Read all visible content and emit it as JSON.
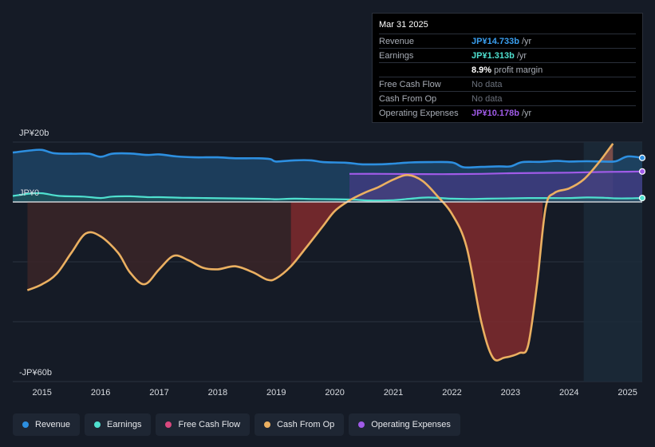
{
  "chart_data": {
    "type": "area",
    "title": "",
    "y_axis": {
      "top_label": "JP¥20b",
      "zero_label": "JP¥0",
      "bottom_label": "-JP¥60b",
      "ylim": [
        -60,
        20
      ]
    },
    "x_axis": {
      "ticks": [
        "2015",
        "2016",
        "2017",
        "2018",
        "2019",
        "2020",
        "2021",
        "2022",
        "2023",
        "2024",
        "2025"
      ],
      "xlim": [
        2014.5,
        2025.25
      ]
    },
    "highlight_region": [
      2024.25,
      2025.25
    ],
    "series": [
      {
        "name": "Revenue",
        "color": "#2d8fe0",
        "type": "area",
        "points": [
          [
            2014.5,
            16.5
          ],
          [
            2014.8,
            17.2
          ],
          [
            2015.0,
            17.4
          ],
          [
            2015.2,
            16.3
          ],
          [
            2015.5,
            16.1
          ],
          [
            2015.8,
            16.1
          ],
          [
            2016.0,
            15.1
          ],
          [
            2016.2,
            16.1
          ],
          [
            2016.5,
            16.2
          ],
          [
            2016.8,
            15.7
          ],
          [
            2017.0,
            15.9
          ],
          [
            2017.3,
            15.2
          ],
          [
            2017.6,
            14.9
          ],
          [
            2018.0,
            14.9
          ],
          [
            2018.3,
            14.6
          ],
          [
            2018.7,
            14.6
          ],
          [
            2018.9,
            14.3
          ],
          [
            2019.0,
            13.5
          ],
          [
            2019.3,
            13.9
          ],
          [
            2019.6,
            13.9
          ],
          [
            2019.8,
            13.3
          ],
          [
            2020.2,
            13.1
          ],
          [
            2020.45,
            12.6
          ],
          [
            2020.8,
            12.6
          ],
          [
            2021.0,
            12.8
          ],
          [
            2021.3,
            13.2
          ],
          [
            2021.6,
            13.3
          ],
          [
            2022.0,
            13.2
          ],
          [
            2022.2,
            11.6
          ],
          [
            2022.5,
            11.7
          ],
          [
            2022.8,
            11.9
          ],
          [
            2023.0,
            11.9
          ],
          [
            2023.2,
            13.3
          ],
          [
            2023.5,
            13.4
          ],
          [
            2023.8,
            13.7
          ],
          [
            2024.0,
            13.5
          ],
          [
            2024.3,
            13.6
          ],
          [
            2024.6,
            13.5
          ],
          [
            2024.8,
            13.6
          ],
          [
            2025.0,
            15.2
          ],
          [
            2025.25,
            14.733
          ]
        ]
      },
      {
        "name": "Earnings",
        "color": "#4fe0cf",
        "type": "area",
        "points": [
          [
            2014.5,
            2.0
          ],
          [
            2014.8,
            2.8
          ],
          [
            2015.0,
            2.9
          ],
          [
            2015.3,
            2.0
          ],
          [
            2015.7,
            1.8
          ],
          [
            2016.0,
            1.3
          ],
          [
            2016.2,
            1.8
          ],
          [
            2016.5,
            1.9
          ],
          [
            2016.8,
            1.6
          ],
          [
            2017.0,
            1.6
          ],
          [
            2017.4,
            1.4
          ],
          [
            2017.8,
            1.3
          ],
          [
            2018.2,
            1.2
          ],
          [
            2018.6,
            1.1
          ],
          [
            2018.9,
            1.0
          ],
          [
            2019.0,
            0.9
          ],
          [
            2019.3,
            1.1
          ],
          [
            2019.6,
            1.0
          ],
          [
            2020.0,
            0.9
          ],
          [
            2020.3,
            0.8
          ],
          [
            2020.6,
            0.5
          ],
          [
            2021.0,
            0.6
          ],
          [
            2021.3,
            1.1
          ],
          [
            2021.6,
            1.5
          ],
          [
            2022.0,
            1.1
          ],
          [
            2022.3,
            1.0
          ],
          [
            2022.6,
            1.1
          ],
          [
            2023.0,
            1.2
          ],
          [
            2023.3,
            1.3
          ],
          [
            2023.6,
            1.3
          ],
          [
            2024.0,
            1.3
          ],
          [
            2024.3,
            1.5
          ],
          [
            2024.6,
            1.4
          ],
          [
            2024.8,
            1.2
          ],
          [
            2025.0,
            1.2
          ],
          [
            2025.25,
            1.313
          ]
        ]
      },
      {
        "name": "Operating Expenses",
        "color": "#a05be8",
        "type": "area",
        "points": [
          [
            2020.25,
            9.4
          ],
          [
            2020.8,
            9.4
          ],
          [
            2021.5,
            9.3
          ],
          [
            2022.0,
            9.3
          ],
          [
            2022.5,
            9.4
          ],
          [
            2023.0,
            9.6
          ],
          [
            2023.5,
            9.7
          ],
          [
            2024.0,
            9.8
          ],
          [
            2024.5,
            10.0
          ],
          [
            2025.0,
            10.1
          ],
          [
            2025.25,
            10.178
          ]
        ]
      },
      {
        "name": "Cash From Op",
        "color": "#ebb061",
        "type": "area",
        "points": [
          [
            2014.75,
            -29.5
          ],
          [
            2015.0,
            -27.5
          ],
          [
            2015.25,
            -24.0
          ],
          [
            2015.5,
            -17.0
          ],
          [
            2015.75,
            -10.5
          ],
          [
            2016.0,
            -11.5
          ],
          [
            2016.3,
            -17.0
          ],
          [
            2016.5,
            -23.5
          ],
          [
            2016.75,
            -27.5
          ],
          [
            2017.0,
            -22.5
          ],
          [
            2017.25,
            -18.0
          ],
          [
            2017.5,
            -19.5
          ],
          [
            2017.75,
            -22.0
          ],
          [
            2018.0,
            -22.5
          ],
          [
            2018.3,
            -21.5
          ],
          [
            2018.6,
            -23.5
          ],
          [
            2018.85,
            -26.0
          ],
          [
            2019.0,
            -25.5
          ],
          [
            2019.25,
            -21.5
          ],
          [
            2019.5,
            -15.5
          ],
          [
            2019.8,
            -8.0
          ],
          [
            2020.0,
            -3.0
          ],
          [
            2020.25,
            0.5
          ],
          [
            2020.5,
            3.0
          ],
          [
            2020.75,
            5.0
          ],
          [
            2021.0,
            7.5
          ],
          [
            2021.25,
            9.0
          ],
          [
            2021.5,
            7.0
          ],
          [
            2021.75,
            2.0
          ],
          [
            2022.0,
            -4.0
          ],
          [
            2022.25,
            -15.0
          ],
          [
            2022.5,
            -40.0
          ],
          [
            2022.7,
            -52.0
          ],
          [
            2022.9,
            -52.0
          ],
          [
            2023.15,
            -50.5
          ],
          [
            2023.3,
            -48.0
          ],
          [
            2023.45,
            -28.0
          ],
          [
            2023.6,
            -2.0
          ],
          [
            2023.75,
            3.0
          ],
          [
            2024.0,
            4.5
          ],
          [
            2024.25,
            7.5
          ],
          [
            2024.5,
            13.0
          ],
          [
            2024.75,
            19.5
          ]
        ]
      }
    ],
    "negative_region_fill": [
      [
        2014.75,
        2019.25,
        "dark"
      ],
      [
        2019.25,
        2020.25,
        "red"
      ],
      [
        2021.7,
        2023.55,
        "red"
      ]
    ]
  },
  "tooltip": {
    "date": "Mar 31 2025",
    "rows": [
      {
        "label": "Revenue",
        "value": "JP¥14.733b",
        "unit": "/yr",
        "color": "#3a9ff0"
      },
      {
        "label": "Earnings",
        "value": "JP¥1.313b",
        "unit": "/yr",
        "color": "#4fe0cf"
      },
      {
        "label": "",
        "value": "8.9%",
        "unit": "profit margin",
        "color": "#ffffff"
      },
      {
        "label": "Free Cash Flow",
        "value": "No data",
        "unit": "",
        "color": ""
      },
      {
        "label": "Cash From Op",
        "value": "No data",
        "unit": "",
        "color": ""
      },
      {
        "label": "Operating Expenses",
        "value": "JP¥10.178b",
        "unit": "/yr",
        "color": "#a05be8"
      }
    ]
  },
  "legend": [
    {
      "label": "Revenue",
      "color": "#2d8fe0"
    },
    {
      "label": "Earnings",
      "color": "#4fe0cf"
    },
    {
      "label": "Free Cash Flow",
      "color": "#d9487e"
    },
    {
      "label": "Cash From Op",
      "color": "#ebb061"
    },
    {
      "label": "Operating Expenses",
      "color": "#a05be8"
    }
  ]
}
